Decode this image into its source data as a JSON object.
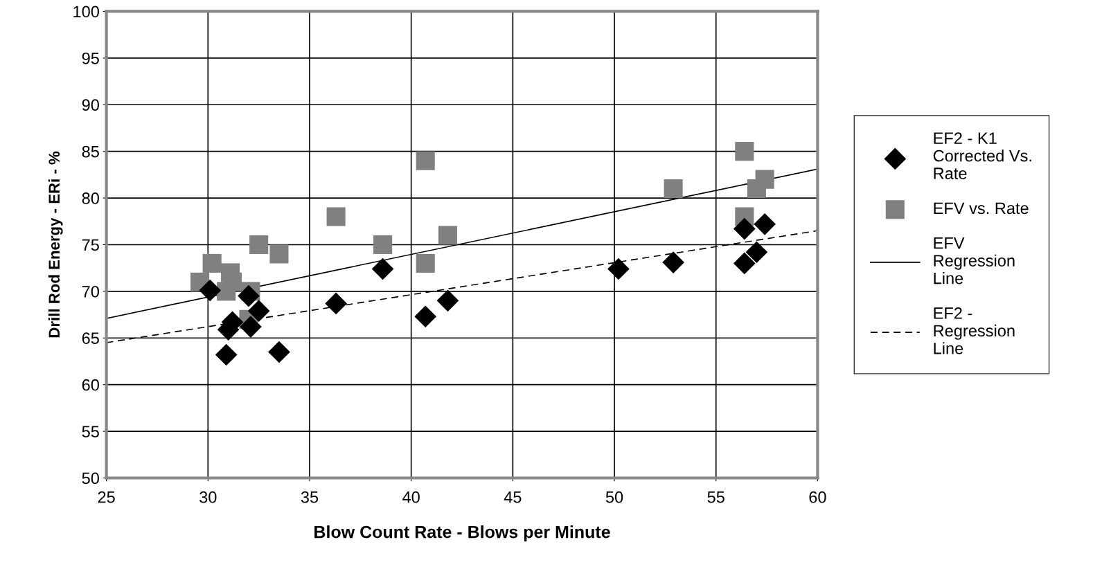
{
  "chart_data": {
    "type": "scatter",
    "xlabel": "Blow Count Rate - Blows per Minute",
    "ylabel": "Drill Rod Energy - ERi - %",
    "xlim": [
      25,
      60
    ],
    "xticks": [
      25,
      30,
      35,
      40,
      45,
      50,
      55,
      60
    ],
    "ylim": [
      50,
      100
    ],
    "yticks": [
      50,
      55,
      60,
      65,
      70,
      75,
      80,
      85,
      90,
      95,
      100
    ],
    "grid": true,
    "legend": "right",
    "series": [
      {
        "name": "EF2 - K1 Corrected Vs. Rate",
        "marker": "diamond",
        "color": "#000000",
        "x": [
          30.1,
          31.2,
          31.0,
          30.9,
          32.0,
          32.1,
          32.5,
          33.5,
          36.3,
          38.6,
          40.7,
          41.8,
          50.2,
          52.9,
          56.4,
          56.4,
          57.0,
          57.4
        ],
        "values": [
          70.1,
          66.7,
          65.9,
          63.2,
          69.5,
          66.2,
          67.9,
          63.5,
          68.7,
          72.4,
          67.3,
          69.0,
          72.4,
          73.1,
          76.7,
          73.0,
          74.2,
          77.2
        ]
      },
      {
        "name": "EFV vs. Rate",
        "marker": "square",
        "color": "#808080",
        "x": [
          29.6,
          30.2,
          30.9,
          31.1,
          31.2,
          32.1,
          32.0,
          32.5,
          33.5,
          36.3,
          38.6,
          40.7,
          40.7,
          41.8,
          52.9,
          56.4,
          56.4,
          57.0,
          57.4
        ],
        "values": [
          71,
          73,
          70,
          72,
          71,
          70,
          67,
          75,
          74,
          78,
          75,
          84,
          73,
          76,
          81,
          85,
          78,
          81,
          82
        ]
      },
      {
        "name": "EFV Regression Line",
        "type": "line",
        "marker": "none",
        "line_style": "solid",
        "color": "#000000",
        "x": [
          25,
          60
        ],
        "values": [
          67.1,
          83.1
        ]
      },
      {
        "name": "EF2 - Regression Line",
        "type": "line",
        "marker": "none",
        "line_style": "dashed",
        "color": "#000000",
        "x": [
          25,
          60
        ],
        "values": [
          64.5,
          76.5
        ]
      }
    ]
  }
}
